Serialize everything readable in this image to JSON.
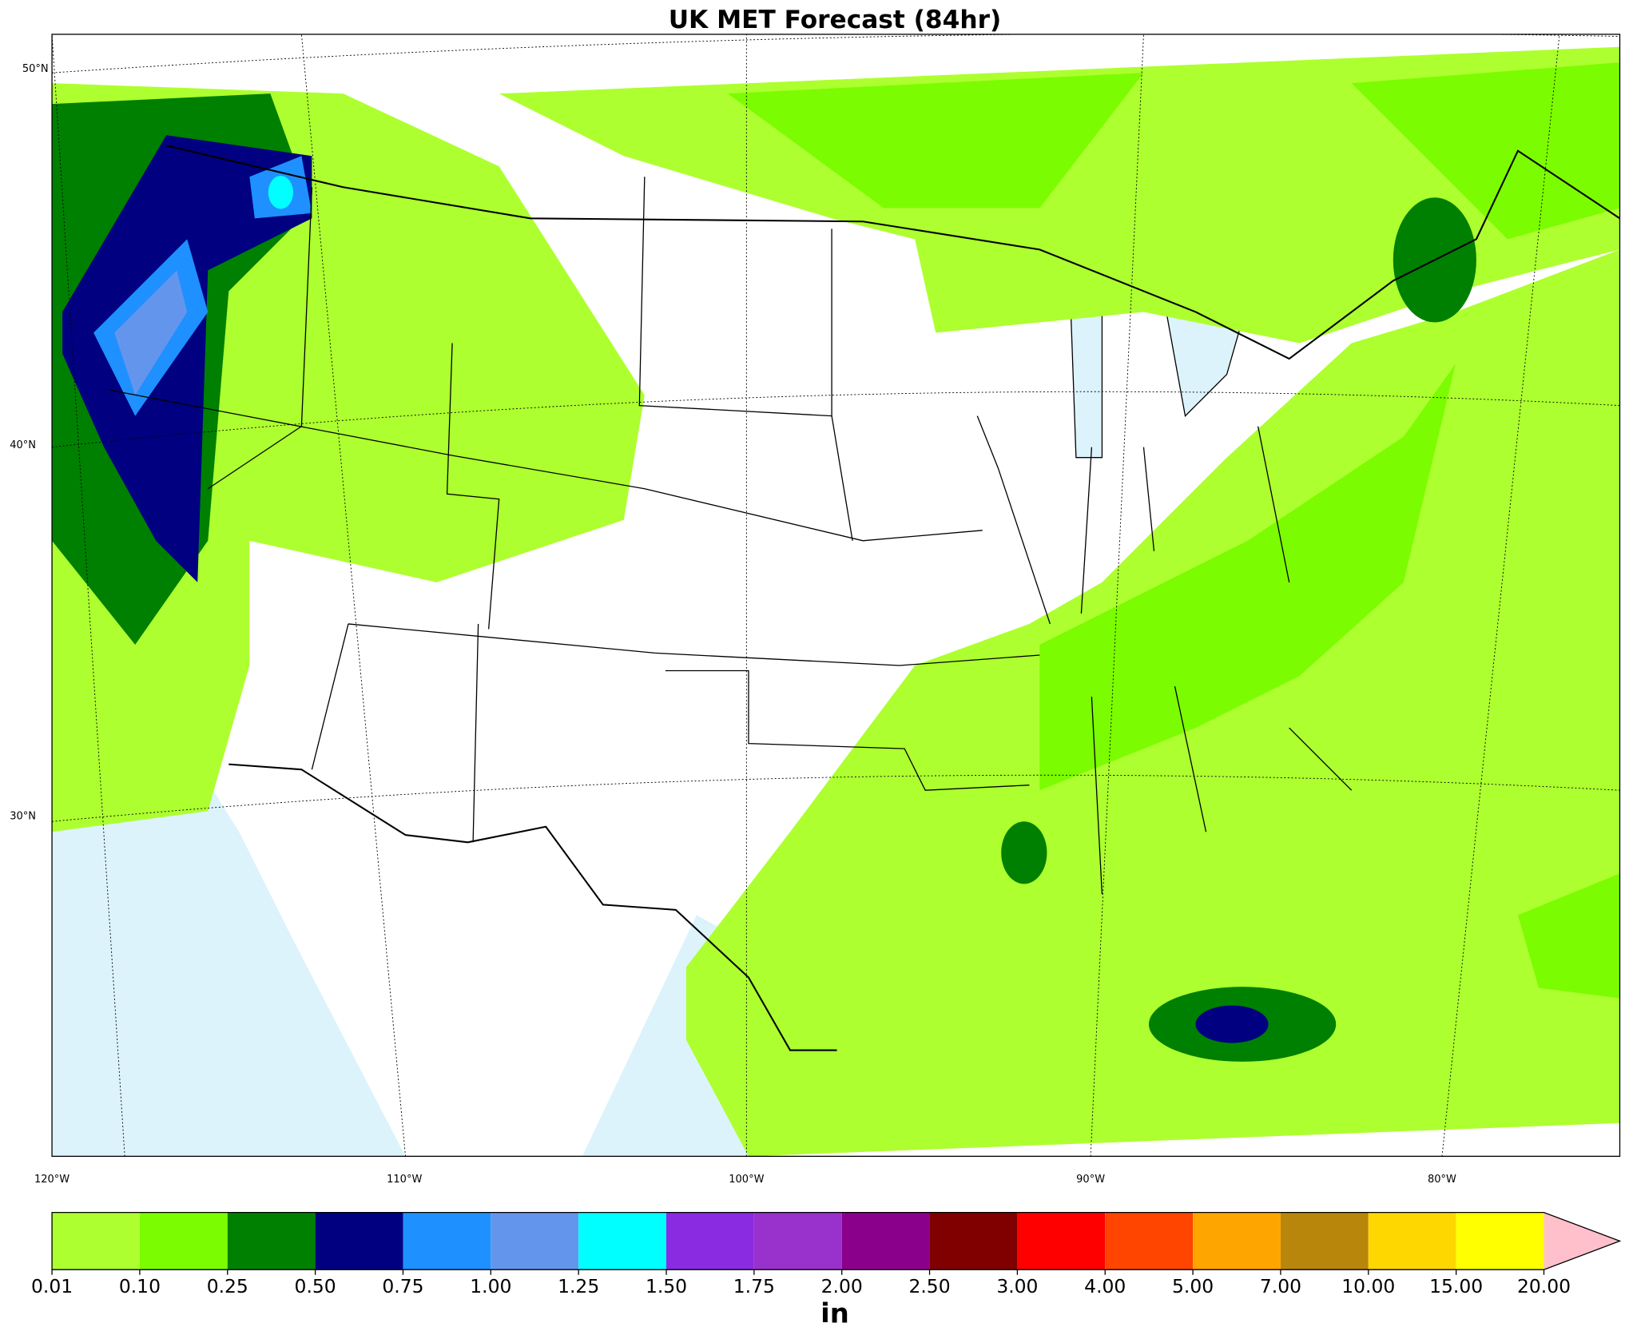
{
  "title": "UK MET Forecast (84hr)",
  "latitude_labels": [
    "50°N",
    "40°N",
    "30°N"
  ],
  "longitude_labels": [
    "120°W",
    "110°W",
    "100°W",
    "90°W",
    "80°W"
  ],
  "colorbar": {
    "colors": [
      "#adff2f",
      "#7cfc00",
      "#008000",
      "#000080",
      "#1e90ff",
      "#6495ed",
      "#00ffff",
      "#8a2be2",
      "#9932cc",
      "#8b008b",
      "#800000",
      "#ff0000",
      "#ff4500",
      "#ffa500",
      "#b8860b",
      "#ffd700",
      "#ffff00"
    ],
    "extend_color": "#ffc0cb",
    "ticks": [
      0.01,
      {
        "value": 0.1,
        "label": "0.10"
      },
      0.25,
      {
        "value": 0.5,
        "label": "0.50"
      },
      0.75,
      {
        "value": 1,
        "label": "1.00"
      },
      1.25,
      {
        "value": 1.5,
        "label": "1.50"
      },
      1.75,
      {
        "value": 2,
        "label": "2.00"
      },
      {
        "value": 2.5,
        "label": "2.50"
      },
      {
        "value": 3,
        "label": "3.00"
      },
      {
        "value": 4,
        "label": "4.00"
      },
      {
        "value": 5,
        "label": "5.00"
      },
      {
        "value": 7,
        "label": "7.00"
      },
      {
        "value": 10,
        "label": "10.00"
      },
      {
        "value": 15,
        "label": "15.00"
      },
      {
        "value": 20,
        "label": "20.00"
      }
    ],
    "unit": "in"
  }
}
